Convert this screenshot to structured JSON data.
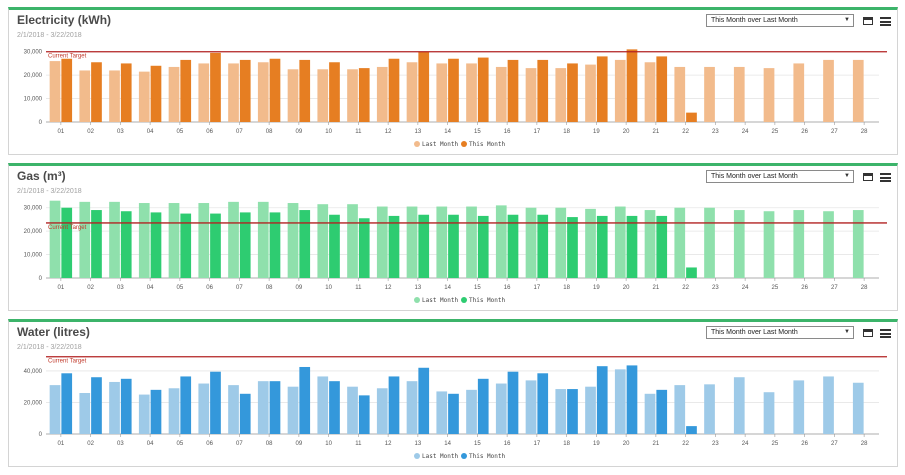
{
  "period_option": "This Month over Last Month",
  "legend_last": "Last Month",
  "legend_this": "This Month",
  "target_label": "Current Target",
  "panels": {
    "electricity": {
      "title": "Electricity (kWh)",
      "date_range": "2/1/2018 - 3/22/2018"
    },
    "gas": {
      "title": "Gas (m³)",
      "date_range": "2/1/2018 - 3/22/2018"
    },
    "water": {
      "title": "Water (litres)",
      "date_range": "2/1/2018 - 3/22/2018"
    }
  },
  "chart_data": [
    {
      "type": "bar",
      "categories": [
        "01",
        "02",
        "03",
        "04",
        "05",
        "06",
        "07",
        "08",
        "09",
        "10",
        "11",
        "12",
        "13",
        "14",
        "15",
        "16",
        "17",
        "18",
        "19",
        "20",
        "21",
        "22",
        "23",
        "24",
        "25",
        "26",
        "27",
        "28"
      ],
      "series": [
        {
          "name": "Last Month",
          "color": "#f2bb8c",
          "values": [
            26000,
            22000,
            22000,
            21500,
            23500,
            25000,
            25000,
            25500,
            22500,
            22500,
            22500,
            23500,
            25500,
            25000,
            25000,
            23500,
            23000,
            23000,
            24500,
            26500,
            25500,
            23500,
            23500,
            23500,
            23000,
            25000,
            26500,
            26500
          ]
        },
        {
          "name": "This Month",
          "color": "#e67e22",
          "values": [
            27000,
            25500,
            25000,
            24000,
            26500,
            29500,
            26500,
            27000,
            26500,
            25500,
            23000,
            27000,
            30000,
            27000,
            27500,
            26500,
            26500,
            25000,
            28000,
            31000,
            28000,
            4000,
            null,
            null,
            null,
            null,
            null,
            null
          ]
        }
      ],
      "target": 30000,
      "ylim": [
        0,
        35000
      ],
      "yticks": [
        0,
        10000,
        20000,
        30000
      ],
      "ytick_labels": [
        "0",
        "10,000",
        "20,000",
        "30,000"
      ]
    },
    {
      "type": "bar",
      "categories": [
        "01",
        "02",
        "03",
        "04",
        "05",
        "06",
        "07",
        "08",
        "09",
        "10",
        "11",
        "12",
        "13",
        "14",
        "15",
        "16",
        "17",
        "18",
        "19",
        "20",
        "21",
        "22",
        "23",
        "24",
        "25",
        "26",
        "27",
        "28"
      ],
      "series": [
        {
          "name": "Last Month",
          "color": "#8fe0ac",
          "values": [
            33000,
            32500,
            32500,
            32000,
            32000,
            32000,
            32500,
            32500,
            32000,
            31500,
            31500,
            30500,
            30500,
            30500,
            30500,
            31000,
            30000,
            30000,
            29500,
            30500,
            29000,
            30000,
            30000,
            29000,
            28500,
            29000,
            28500,
            29000
          ]
        },
        {
          "name": "This Month",
          "color": "#2ecc71",
          "values": [
            30000,
            29000,
            28500,
            28000,
            27500,
            27500,
            28000,
            28000,
            29000,
            27000,
            25500,
            26500,
            27000,
            27000,
            26500,
            27000,
            27000,
            26000,
            26500,
            26500,
            26500,
            4500,
            null,
            null,
            null,
            null,
            null,
            null
          ]
        }
      ],
      "target": 23500,
      "ylim": [
        0,
        35000
      ],
      "yticks": [
        0,
        10000,
        20000,
        30000
      ],
      "ytick_labels": [
        "0",
        "10,000",
        "20,000",
        "30,000"
      ]
    },
    {
      "type": "bar",
      "categories": [
        "01",
        "02",
        "03",
        "04",
        "05",
        "06",
        "07",
        "08",
        "09",
        "10",
        "11",
        "12",
        "13",
        "14",
        "15",
        "16",
        "17",
        "18",
        "19",
        "20",
        "21",
        "22",
        "23",
        "24",
        "25",
        "26",
        "27",
        "28"
      ],
      "series": [
        {
          "name": "Last Month",
          "color": "#9ecae8",
          "values": [
            31000,
            26000,
            33000,
            25000,
            29000,
            32000,
            31000,
            33500,
            30000,
            36500,
            30000,
            29000,
            33500,
            27000,
            28000,
            32000,
            34000,
            28500,
            30000,
            41000,
            25500,
            31000,
            31500,
            36000,
            26500,
            34000,
            36500,
            32500
          ]
        },
        {
          "name": "This Month",
          "color": "#3498db",
          "values": [
            38500,
            36000,
            35000,
            28000,
            36500,
            39500,
            25500,
            33500,
            42500,
            33500,
            24500,
            36500,
            42000,
            25500,
            35000,
            39500,
            38500,
            28500,
            43000,
            43500,
            28000,
            5000,
            null,
            null,
            null,
            null,
            null,
            null
          ]
        }
      ],
      "target": 49000,
      "ylim": [
        0,
        52000
      ],
      "yticks": [
        0,
        20000,
        40000
      ],
      "ytick_labels": [
        "0",
        "20,000",
        "40,000"
      ]
    }
  ]
}
